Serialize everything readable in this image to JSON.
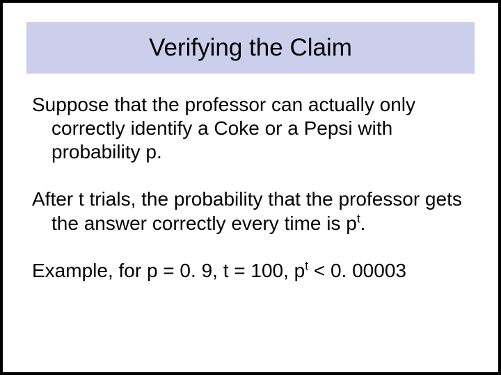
{
  "slide": {
    "title": "Verifying the Claim",
    "paragraphs": {
      "p1": "Suppose that the professor can actually only correctly identify a Coke or a Pepsi with probability p.",
      "p2_pre": "After t trials, the probability that the professor gets the answer correctly every time is p",
      "p2_sup": "t",
      "p2_post": ".",
      "p3_pre": "Example, for p = 0. 9, t = 100, p",
      "p3_sup": "t",
      "p3_post": " < 0. 00003"
    }
  },
  "style": {
    "border_color": "#000000",
    "title_bg": "#cccfec",
    "background": "#ffffff",
    "text_color": "#000000",
    "title_fontsize": 35,
    "body_fontsize": 28
  }
}
